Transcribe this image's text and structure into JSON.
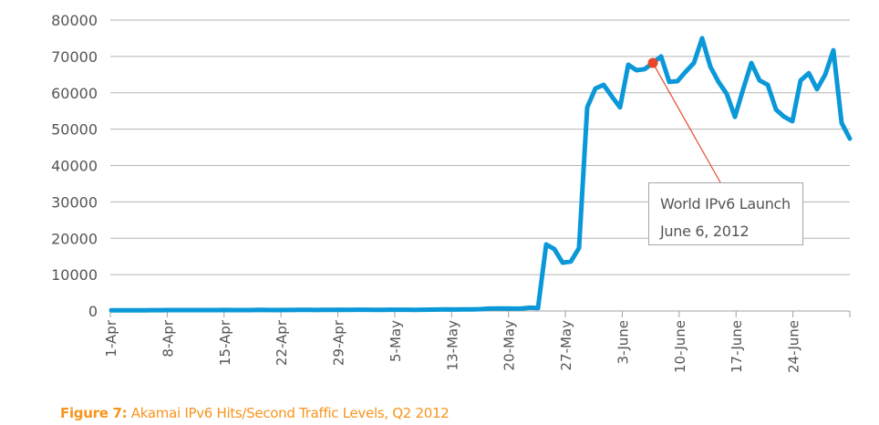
{
  "chart_data": {
    "type": "line",
    "title": "Akamai IPv6 Hits/Second Traffic Levels, Q2 2012",
    "xlabel": "",
    "ylabel": "",
    "ylim": [
      0,
      80000
    ],
    "yticks": [
      0,
      10000,
      20000,
      30000,
      40000,
      50000,
      60000,
      70000,
      80000
    ],
    "grid": true,
    "xtick_labels": [
      "1-Apr",
      "8-Apr",
      "15-Apr",
      "22-Apr",
      "29-Apr",
      "5-May",
      "13-May",
      "20-May",
      "27-May",
      "3-June",
      "10-June",
      "17-June",
      "24-June"
    ],
    "series": [
      {
        "name": "IPv6 Hits/Second",
        "color": "#0a98d8",
        "values": [
          200,
          200,
          200,
          200,
          200,
          220,
          220,
          250,
          250,
          250,
          260,
          260,
          250,
          260,
          280,
          260,
          250,
          260,
          300,
          280,
          260,
          270,
          280,
          300,
          290,
          280,
          300,
          320,
          350,
          330,
          340,
          350,
          320,
          330,
          340,
          360,
          350,
          330,
          350,
          380,
          400,
          420,
          400,
          420,
          450,
          500,
          650,
          700,
          680,
          650,
          700,
          900,
          800,
          18300,
          17000,
          13300,
          13600,
          17300,
          56000,
          61200,
          62200,
          59000,
          56000,
          67700,
          66200,
          66500,
          68200,
          70000,
          63000,
          63200,
          65800,
          68200,
          75000,
          67200,
          63000,
          59700,
          53400,
          61000,
          68200,
          63400,
          62200,
          55400,
          53400,
          52200,
          63400,
          65400,
          61000,
          65000,
          71700,
          51700,
          47400
        ]
      }
    ],
    "annotation": {
      "line1": "World IPv6 Launch",
      "line2": "June 6, 2012",
      "point_index": 66,
      "point_value": 68200,
      "marker_color": "#e8472b"
    }
  },
  "caption": {
    "label": "Figure 7:",
    "text": " Akamai IPv6 Hits/Second Traffic Levels, Q2 2012",
    "color": "#f7941d"
  }
}
